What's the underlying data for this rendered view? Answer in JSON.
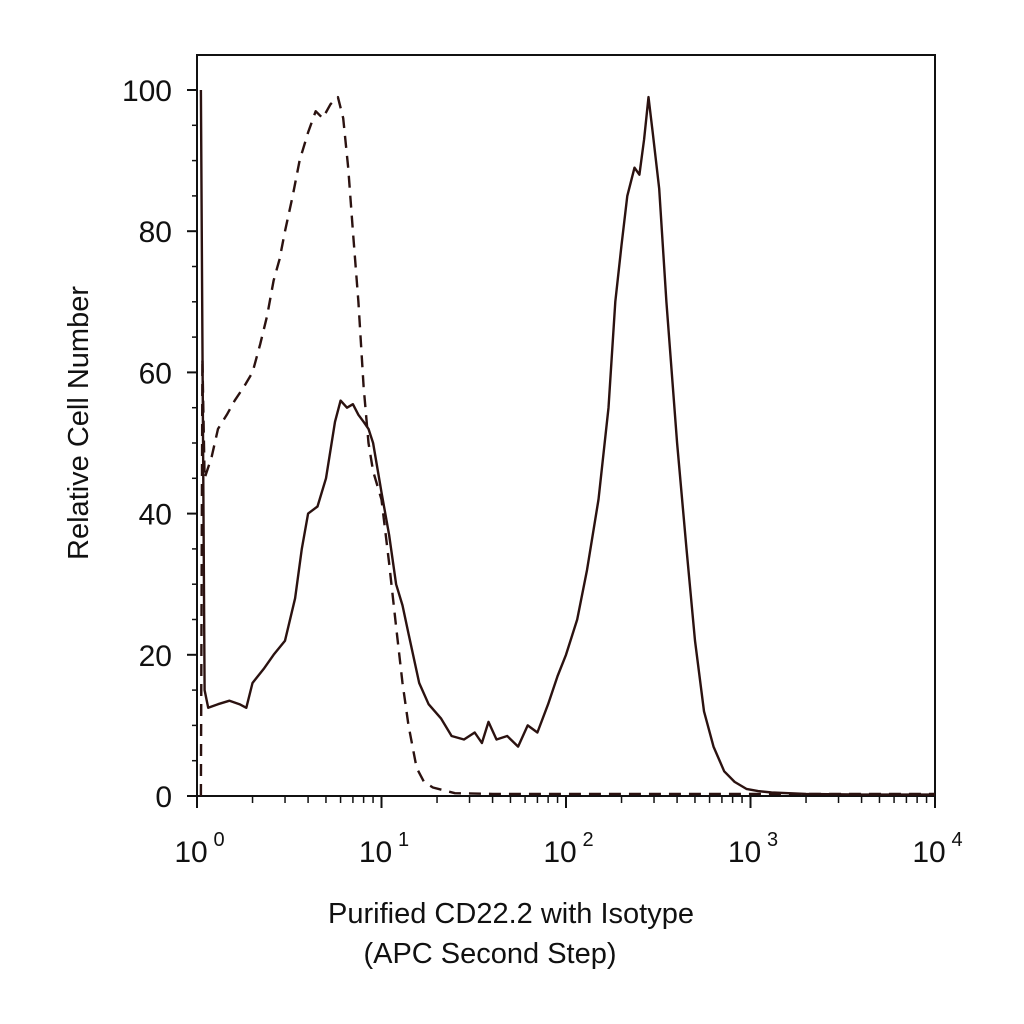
{
  "chart_data": {
    "type": "line",
    "title": "",
    "xlabel": "Purified CD22.2 with Isotype",
    "xlabel2": "(APC Second Step)",
    "ylabel": "Relative Cell Number",
    "x_scale": "log",
    "xlim": [
      1,
      10000
    ],
    "ylim": [
      0,
      100
    ],
    "grid": false,
    "legend": "none",
    "frame": "box",
    "x_ticks": [
      {
        "value": 1,
        "base": "10",
        "exp": "0"
      },
      {
        "value": 10,
        "base": "10",
        "exp": "1"
      },
      {
        "value": 100,
        "base": "10",
        "exp": "2"
      },
      {
        "value": 1000,
        "base": "10",
        "exp": "3"
      },
      {
        "value": 10000,
        "base": "10",
        "exp": "4"
      }
    ],
    "y_ticks": [
      0,
      20,
      40,
      60,
      80,
      100
    ],
    "line_color": "#2b1210",
    "series": [
      {
        "style": "dashed",
        "points": [
          [
            1.05,
            0
          ],
          [
            1.07,
            62
          ],
          [
            1.1,
            45
          ],
          [
            1.2,
            48
          ],
          [
            1.3,
            52
          ],
          [
            1.45,
            54
          ],
          [
            1.6,
            56
          ],
          [
            1.8,
            58
          ],
          [
            2.0,
            60
          ],
          [
            2.2,
            64
          ],
          [
            2.4,
            68
          ],
          [
            2.6,
            73
          ],
          [
            2.8,
            76
          ],
          [
            3.0,
            80
          ],
          [
            3.3,
            85
          ],
          [
            3.6,
            90
          ],
          [
            4.0,
            94
          ],
          [
            4.4,
            97
          ],
          [
            4.8,
            96
          ],
          [
            5.3,
            98
          ],
          [
            5.8,
            99
          ],
          [
            6.2,
            96
          ],
          [
            6.6,
            89
          ],
          [
            7.0,
            80
          ],
          [
            7.5,
            70
          ],
          [
            8.0,
            58
          ],
          [
            8.5,
            50
          ],
          [
            9.0,
            46
          ],
          [
            10.0,
            42
          ],
          [
            11.0,
            33
          ],
          [
            12.0,
            24
          ],
          [
            13.0,
            16
          ],
          [
            14.0,
            10
          ],
          [
            15.5,
            4
          ],
          [
            17.0,
            2
          ],
          [
            19.0,
            1.2
          ],
          [
            25.0,
            0.4
          ],
          [
            40.0,
            0.3
          ],
          [
            100.0,
            0.3
          ],
          [
            300.0,
            0.3
          ],
          [
            1000.0,
            0.3
          ],
          [
            3000.0,
            0.3
          ],
          [
            10000.0,
            0.3
          ]
        ]
      },
      {
        "style": "solid",
        "points": [
          [
            1.05,
            100
          ],
          [
            1.07,
            65
          ],
          [
            1.1,
            15
          ],
          [
            1.15,
            12.5
          ],
          [
            1.3,
            13
          ],
          [
            1.5,
            13.5
          ],
          [
            1.7,
            13
          ],
          [
            1.85,
            12.5
          ],
          [
            2.0,
            16
          ],
          [
            2.3,
            18
          ],
          [
            2.6,
            20
          ],
          [
            3.0,
            22
          ],
          [
            3.4,
            28
          ],
          [
            3.7,
            35
          ],
          [
            4.0,
            40
          ],
          [
            4.5,
            41
          ],
          [
            5.0,
            45
          ],
          [
            5.6,
            53
          ],
          [
            6.0,
            56
          ],
          [
            6.5,
            55
          ],
          [
            7.0,
            55.5
          ],
          [
            7.5,
            54
          ],
          [
            8.0,
            53
          ],
          [
            8.5,
            52
          ],
          [
            9.0,
            50
          ],
          [
            10.0,
            43
          ],
          [
            11.0,
            37
          ],
          [
            12.0,
            30
          ],
          [
            13.0,
            27
          ],
          [
            14.0,
            23
          ],
          [
            16.0,
            16
          ],
          [
            18.0,
            13
          ],
          [
            21.0,
            11
          ],
          [
            24.0,
            8.5
          ],
          [
            28.0,
            8
          ],
          [
            32.0,
            9
          ],
          [
            35.0,
            7.5
          ],
          [
            38.0,
            10.5
          ],
          [
            42.0,
            8
          ],
          [
            48.0,
            8.5
          ],
          [
            55.0,
            7
          ],
          [
            62.0,
            10
          ],
          [
            70.0,
            9
          ],
          [
            80.0,
            13
          ],
          [
            90.0,
            17
          ],
          [
            100.0,
            20
          ],
          [
            115.0,
            25
          ],
          [
            130.0,
            32
          ],
          [
            150.0,
            42
          ],
          [
            170.0,
            55
          ],
          [
            185.0,
            70
          ],
          [
            200.0,
            78
          ],
          [
            215.0,
            85
          ],
          [
            235.0,
            89
          ],
          [
            250.0,
            88
          ],
          [
            265.0,
            93
          ],
          [
            280.0,
            99
          ],
          [
            295.0,
            94
          ],
          [
            320.0,
            86
          ],
          [
            350.0,
            70
          ],
          [
            400.0,
            50
          ],
          [
            450.0,
            35
          ],
          [
            500.0,
            22
          ],
          [
            560.0,
            12
          ],
          [
            630.0,
            7
          ],
          [
            720.0,
            3.5
          ],
          [
            820.0,
            2
          ],
          [
            950.0,
            1
          ],
          [
            1100.0,
            0.7
          ],
          [
            1300.0,
            0.5
          ],
          [
            2000.0,
            0.3
          ],
          [
            4000.0,
            0.2
          ],
          [
            10000.0,
            0.2
          ]
        ]
      }
    ]
  }
}
